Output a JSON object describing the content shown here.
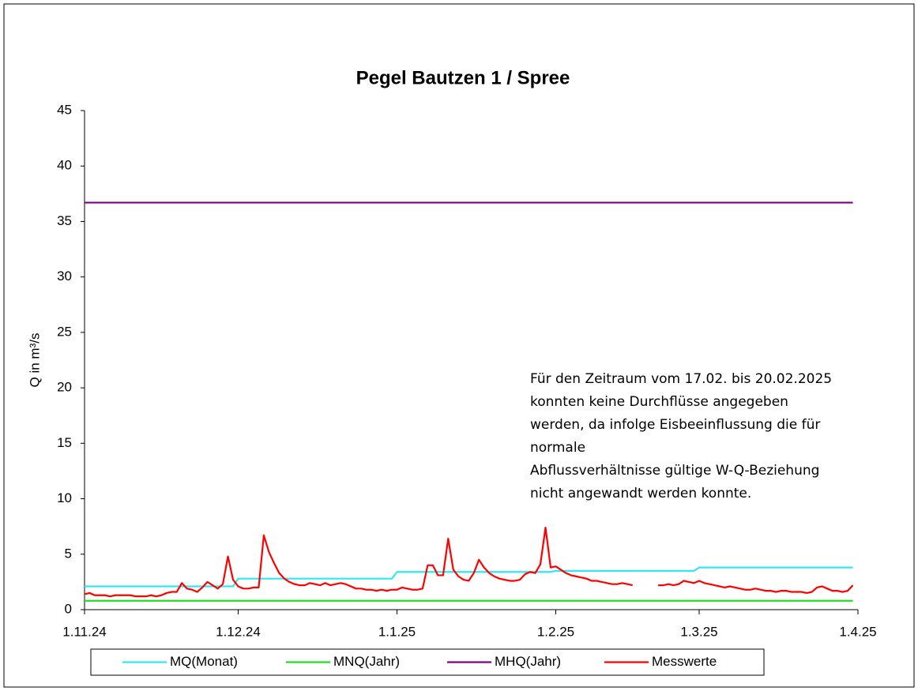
{
  "chart_data": {
    "type": "line",
    "title": "Pegel Bautzen 1 / Spree",
    "y_label": "Q in m³/s",
    "annotation": [
      "Für den Zeitraum vom 17.02. bis 20.02.2025",
      "konnten keine Durchflüsse angegeben",
      "werden, da infolge Eisbeeinflussung die für",
      "normale",
      "Abflussverhältnisse gültige W-Q-Beziehung",
      "nicht angewandt werden konnte."
    ],
    "xlim": [
      "2024-11-01",
      "2025-04-01"
    ],
    "xticks": [
      {
        "value": "2024-11-01",
        "label": "1.11.24"
      },
      {
        "value": "2024-12-01",
        "label": "1.12.24"
      },
      {
        "value": "2025-01-01",
        "label": "1.1.25"
      },
      {
        "value": "2025-02-01",
        "label": "1.2.25"
      },
      {
        "value": "2025-03-01",
        "label": "1.3.25"
      },
      {
        "value": "2025-04-01",
        "label": "1.4.25"
      }
    ],
    "ylim": [
      0,
      45
    ],
    "yticks": [
      0,
      5,
      10,
      15,
      20,
      25,
      30,
      35,
      40,
      45
    ],
    "grid": false,
    "legend": "bottom",
    "series": [
      {
        "name": "MQ(Monat)",
        "color": "#33e6f0",
        "x": [
          "2024-11-01",
          "2024-11-30",
          "2024-12-01",
          "2024-12-31",
          "2025-01-01",
          "2025-01-31",
          "2025-02-01",
          "2025-02-28",
          "2025-03-01",
          "2025-03-31"
        ],
        "values": [
          2.1,
          2.1,
          2.8,
          2.8,
          3.4,
          3.4,
          3.5,
          3.5,
          3.8,
          3.8
        ]
      },
      {
        "name": "MNQ(Jahr)",
        "color": "#22dd22",
        "x": [
          "2024-11-01",
          "2025-03-31"
        ],
        "values": [
          0.8,
          0.8
        ]
      },
      {
        "name": "MHQ(Jahr)",
        "color": "#800080",
        "x": [
          "2024-11-01",
          "2025-03-31"
        ],
        "values": [
          36.7,
          36.7
        ]
      },
      {
        "name": "Messwerte",
        "color": "#ff0000",
        "x": [
          "2024-11-01",
          "2024-11-02",
          "2024-11-03",
          "2024-11-04",
          "2024-11-05",
          "2024-11-06",
          "2024-11-07",
          "2024-11-08",
          "2024-11-09",
          "2024-11-10",
          "2024-11-11",
          "2024-11-12",
          "2024-11-13",
          "2024-11-14",
          "2024-11-15",
          "2024-11-16",
          "2024-11-17",
          "2024-11-18",
          "2024-11-19",
          "2024-11-20",
          "2024-11-21",
          "2024-11-22",
          "2024-11-23",
          "2024-11-24",
          "2024-11-25",
          "2024-11-26",
          "2024-11-27",
          "2024-11-28",
          "2024-11-29",
          "2024-11-30",
          "2024-12-01",
          "2024-12-02",
          "2024-12-03",
          "2024-12-04",
          "2024-12-05",
          "2024-12-06",
          "2024-12-07",
          "2024-12-08",
          "2024-12-09",
          "2024-12-10",
          "2024-12-11",
          "2024-12-12",
          "2024-12-13",
          "2024-12-14",
          "2024-12-15",
          "2024-12-16",
          "2024-12-17",
          "2024-12-18",
          "2024-12-19",
          "2024-12-20",
          "2024-12-21",
          "2024-12-22",
          "2024-12-23",
          "2024-12-24",
          "2024-12-25",
          "2024-12-26",
          "2024-12-27",
          "2024-12-28",
          "2024-12-29",
          "2024-12-30",
          "2024-12-31",
          "2025-01-01",
          "2025-01-02",
          "2025-01-03",
          "2025-01-04",
          "2025-01-05",
          "2025-01-06",
          "2025-01-07",
          "2025-01-08",
          "2025-01-09",
          "2025-01-10",
          "2025-01-11",
          "2025-01-12",
          "2025-01-13",
          "2025-01-14",
          "2025-01-15",
          "2025-01-16",
          "2025-01-17",
          "2025-01-18",
          "2025-01-19",
          "2025-01-20",
          "2025-01-21",
          "2025-01-22",
          "2025-01-23",
          "2025-01-24",
          "2025-01-25",
          "2025-01-26",
          "2025-01-27",
          "2025-01-28",
          "2025-01-29",
          "2025-01-30",
          "2025-01-31",
          "2025-02-01",
          "2025-02-02",
          "2025-02-03",
          "2025-02-04",
          "2025-02-05",
          "2025-02-06",
          "2025-02-07",
          "2025-02-08",
          "2025-02-09",
          "2025-02-10",
          "2025-02-11",
          "2025-02-12",
          "2025-02-13",
          "2025-02-14",
          "2025-02-15",
          "2025-02-16",
          "2025-02-17",
          "2025-02-18",
          "2025-02-19",
          "2025-02-20",
          "2025-02-21",
          "2025-02-22",
          "2025-02-23",
          "2025-02-24",
          "2025-02-25",
          "2025-02-26",
          "2025-02-27",
          "2025-02-28",
          "2025-03-01",
          "2025-03-02",
          "2025-03-03",
          "2025-03-04",
          "2025-03-05",
          "2025-03-06",
          "2025-03-07",
          "2025-03-08",
          "2025-03-09",
          "2025-03-10",
          "2025-03-11",
          "2025-03-12",
          "2025-03-13",
          "2025-03-14",
          "2025-03-15",
          "2025-03-16",
          "2025-03-17",
          "2025-03-18",
          "2025-03-19",
          "2025-03-20",
          "2025-03-21",
          "2025-03-22",
          "2025-03-23",
          "2025-03-24",
          "2025-03-25",
          "2025-03-26",
          "2025-03-27",
          "2025-03-28",
          "2025-03-29",
          "2025-03-30",
          "2025-03-31"
        ],
        "values": [
          1.4,
          1.5,
          1.3,
          1.3,
          1.3,
          1.2,
          1.3,
          1.3,
          1.3,
          1.3,
          1.2,
          1.2,
          1.2,
          1.3,
          1.2,
          1.3,
          1.5,
          1.6,
          1.6,
          2.4,
          1.9,
          1.8,
          1.6,
          2.0,
          2.5,
          2.2,
          1.9,
          2.3,
          4.8,
          2.7,
          2.1,
          1.9,
          1.9,
          2.0,
          2.0,
          6.7,
          5.2,
          4.2,
          3.3,
          2.8,
          2.5,
          2.3,
          2.2,
          2.2,
          2.4,
          2.3,
          2.2,
          2.4,
          2.2,
          2.3,
          2.4,
          2.3,
          2.1,
          1.9,
          1.9,
          1.8,
          1.8,
          1.7,
          1.8,
          1.7,
          1.8,
          1.8,
          2.0,
          1.9,
          1.8,
          1.8,
          1.9,
          4.0,
          4.0,
          3.1,
          3.1,
          6.4,
          3.6,
          3.0,
          2.7,
          2.6,
          3.3,
          4.5,
          3.8,
          3.3,
          3.0,
          2.8,
          2.7,
          2.6,
          2.6,
          2.7,
          3.2,
          3.4,
          3.3,
          4.1,
          7.4,
          3.8,
          3.9,
          3.6,
          3.3,
          3.1,
          3.0,
          2.9,
          2.8,
          2.6,
          2.6,
          2.5,
          2.4,
          2.3,
          2.3,
          2.4,
          2.3,
          2.2,
          null,
          null,
          null,
          null,
          2.2,
          2.2,
          2.3,
          2.2,
          2.3,
          2.6,
          2.5,
          2.4,
          2.6,
          2.4,
          2.3,
          2.2,
          2.1,
          2.0,
          2.1,
          2.0,
          1.9,
          1.8,
          1.8,
          1.9,
          1.8,
          1.7,
          1.7,
          1.6,
          1.7,
          1.7,
          1.6,
          1.6,
          1.6,
          1.5,
          1.6,
          2.0,
          2.1,
          1.9,
          1.7,
          1.7,
          1.6,
          1.7,
          2.2
        ]
      }
    ]
  }
}
